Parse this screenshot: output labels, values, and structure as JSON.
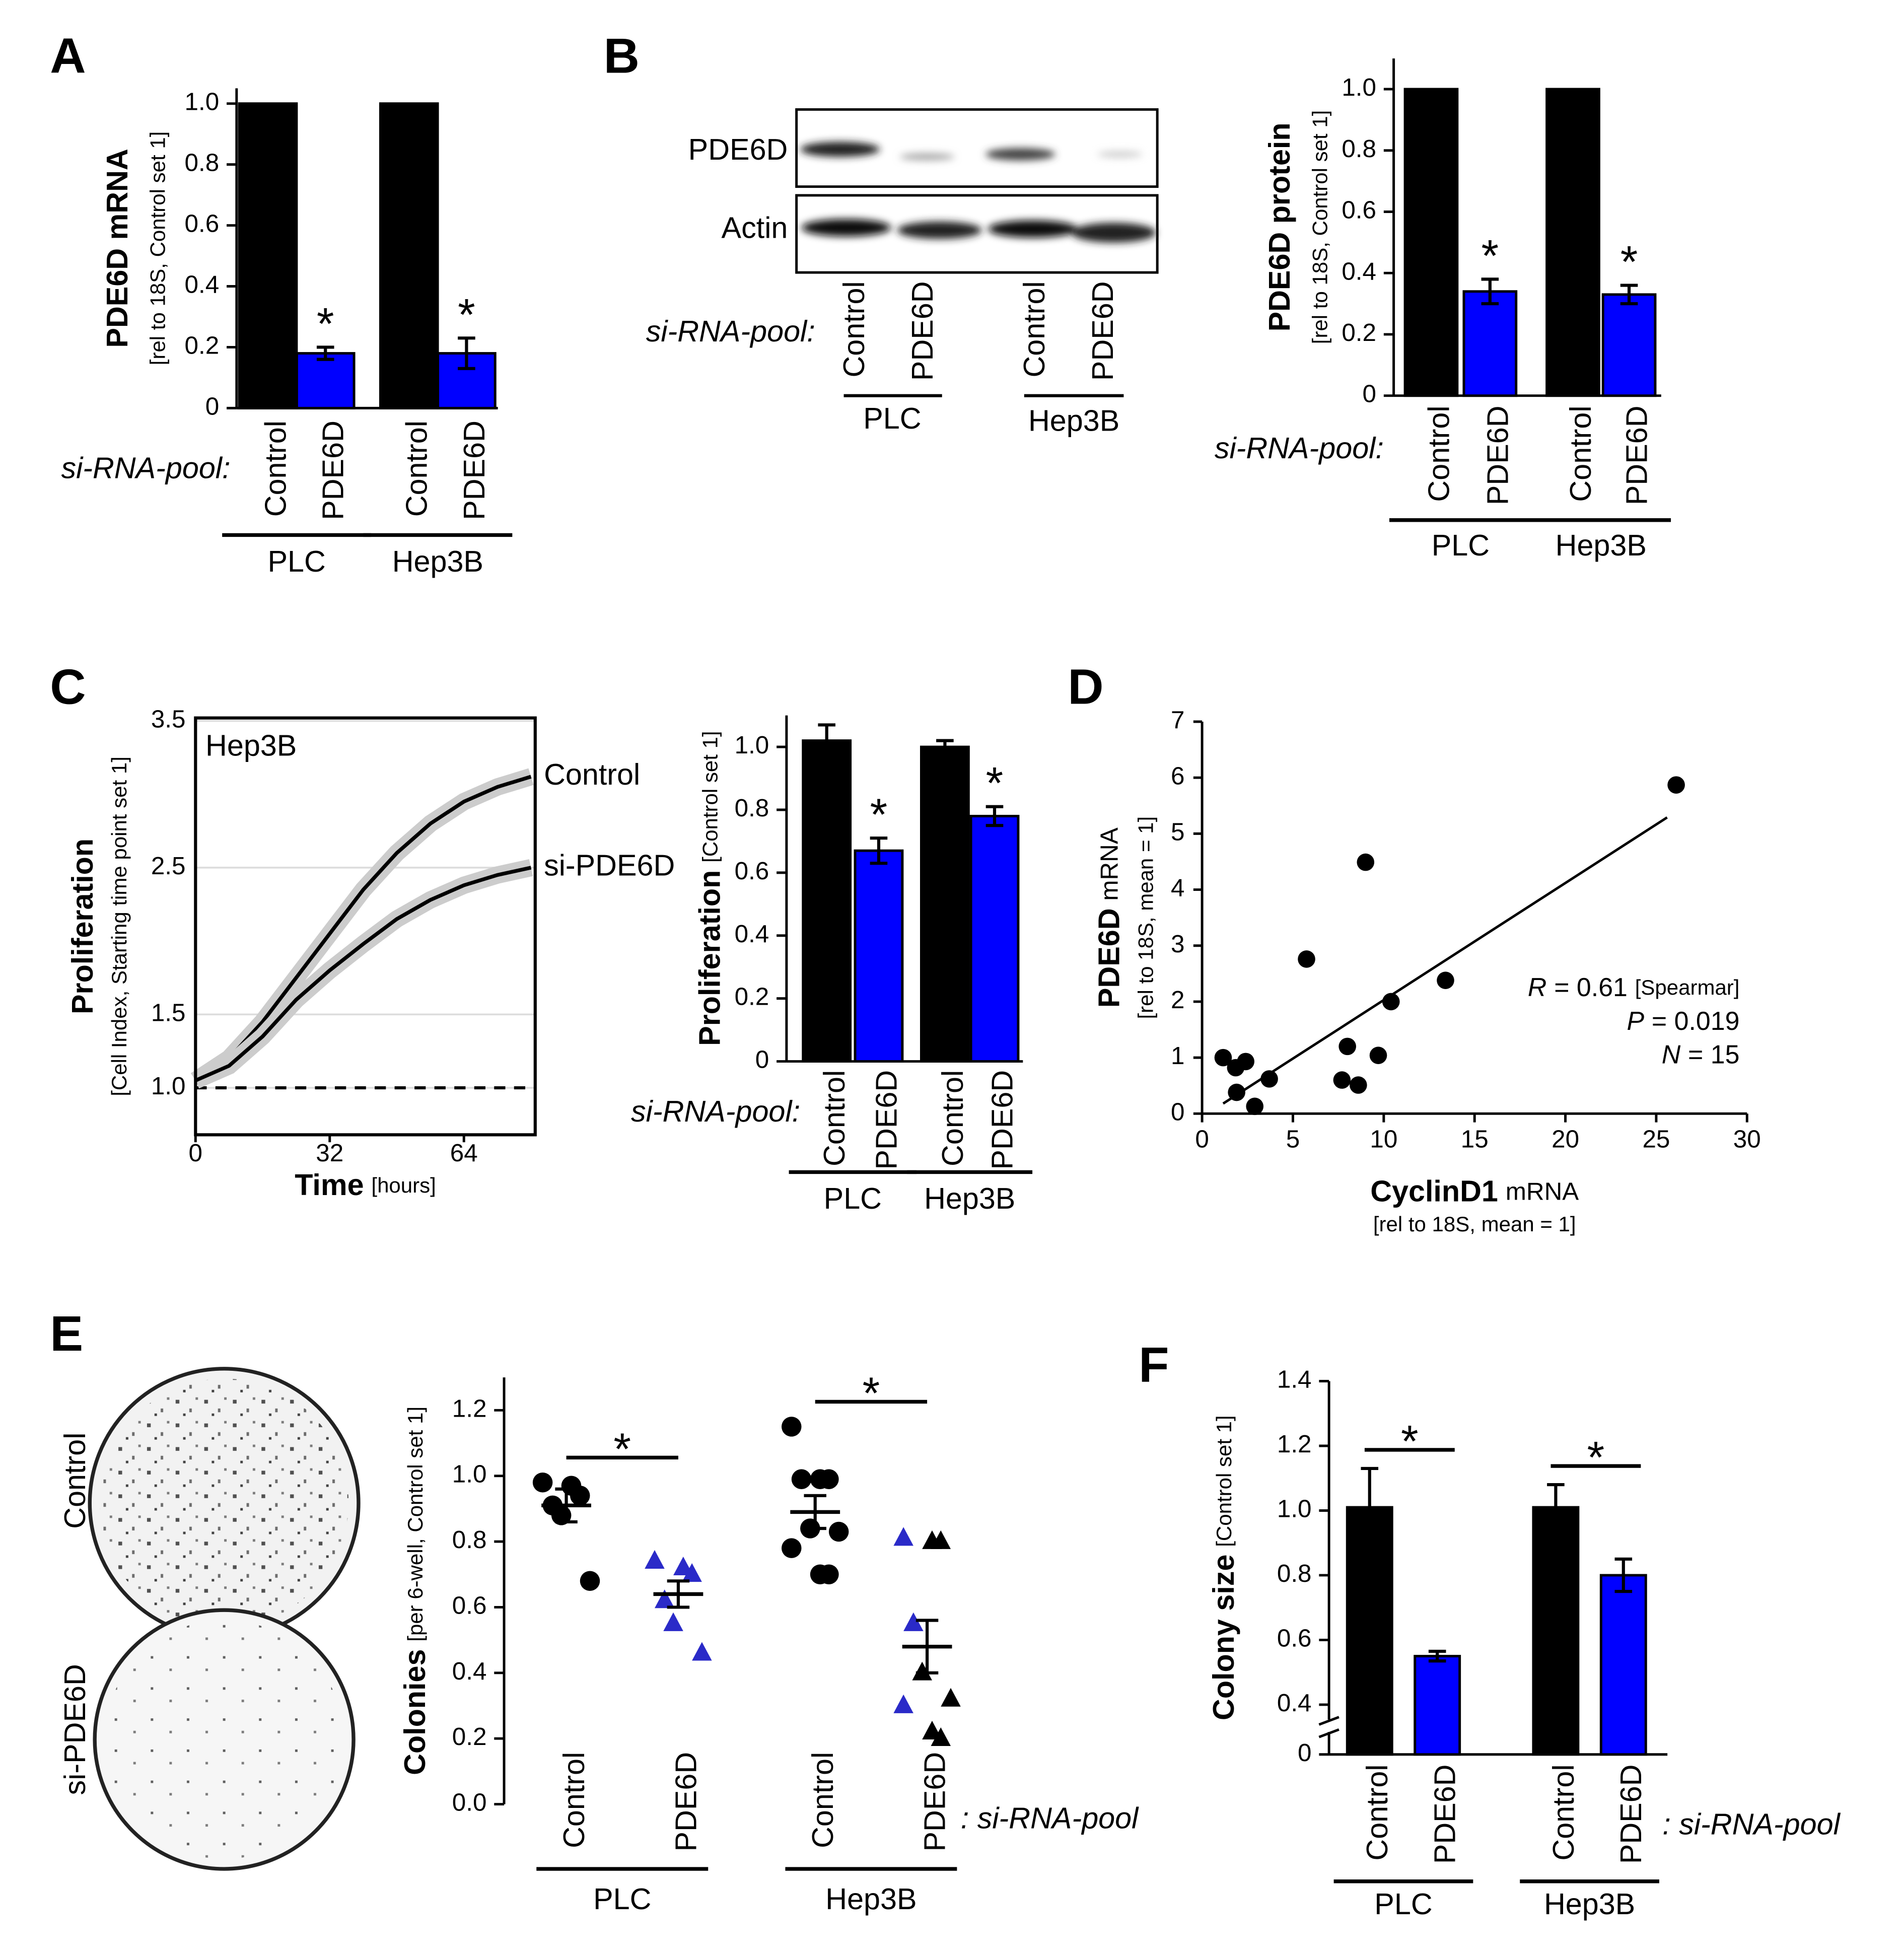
{
  "chart_data": [
    {
      "panel": "A",
      "type": "bar",
      "ylabel": "PDE6D mRNA",
      "ylabel_sub": "[rel to 18S, Control set 1]",
      "categories": [
        "Control",
        "PDE6D",
        "Control",
        "PDE6D"
      ],
      "groups": [
        "PLC",
        "Hep3B"
      ],
      "category_prefix": "si-RNA-pool:",
      "values": [
        1,
        0.18,
        1,
        0.18
      ],
      "errors": [
        null,
        0.02,
        null,
        0.05
      ],
      "annotations": [
        null,
        "*",
        null,
        "*"
      ],
      "colors": [
        "#000000",
        "#0000ff",
        "#000000",
        "#0000ff"
      ],
      "ylim": [
        0,
        1.05
      ],
      "yticks": [
        0,
        0.2,
        0.4,
        0.6,
        0.8,
        {
          "value": 1,
          "label": "1.0"
        }
      ]
    },
    {
      "panel": "B",
      "type": "bar",
      "ylabel": "PDE6D protein",
      "ylabel_sub": "[rel to 18S, Control set 1]",
      "categories": [
        "Control",
        "PDE6D",
        "Control",
        "PDE6D"
      ],
      "groups": [
        "PLC",
        "Hep3B"
      ],
      "category_prefix": "si-RNA-pool:",
      "values": [
        1,
        0.34,
        1,
        0.33
      ],
      "errors": [
        null,
        0.04,
        null,
        0.03
      ],
      "annotations": [
        null,
        "*",
        null,
        "*"
      ],
      "colors": [
        "#000000",
        "#0000ff",
        "#000000",
        "#0000ff"
      ],
      "ylim": [
        0,
        1.1
      ],
      "yticks": [
        0,
        0.2,
        0.4,
        0.6,
        0.8,
        {
          "value": 1,
          "label": "1.0"
        }
      ]
    },
    {
      "panel": "C",
      "type": "line",
      "title": "Hep3B",
      "ylabel": "Proliferation",
      "ylabel_sub": "[Cell Index, Starting time point set 1]",
      "xlabel": "Time",
      "xlabel_sub": "[hours]",
      "x": [
        0,
        8,
        16,
        24,
        32,
        40,
        48,
        56,
        64,
        72,
        80
      ],
      "series": [
        {
          "name": "Control",
          "color": "#000000",
          "values": [
            1.05,
            1.2,
            1.45,
            1.75,
            2.05,
            2.35,
            2.6,
            2.8,
            2.95,
            3.05,
            3.12
          ]
        },
        {
          "name": "si-PDE6D",
          "color": "#000000",
          "values": [
            1.05,
            1.15,
            1.35,
            1.6,
            1.8,
            1.98,
            2.15,
            2.28,
            2.38,
            2.45,
            2.5
          ]
        }
      ],
      "xlim": [
        0,
        81
      ],
      "ylim": [
        0.68,
        3.52
      ],
      "xticks": [
        0,
        32,
        64
      ],
      "yticks": [
        {
          "value": 1,
          "label": "1.0"
        },
        1.5,
        2.5,
        3.5
      ],
      "reference_line": 1,
      "grid": true
    },
    {
      "type": "bar",
      "ylabel": "Proliferation",
      "ylabel_sub": "[Control set 1]",
      "categories": [
        "Control",
        "PDE6D",
        "Control",
        "PDE6D"
      ],
      "groups": [
        "PLC",
        "Hep3B"
      ],
      "category_prefix": "si-RNA-pool:",
      "values": [
        1.02,
        0.67,
        1.0,
        0.78
      ],
      "errors": [
        0.05,
        0.04,
        0.02,
        0.03
      ],
      "annotations": [
        null,
        "*",
        null,
        "*"
      ],
      "colors": [
        "#000000",
        "#0000ff",
        "#000000",
        "#0000ff"
      ],
      "ylim": [
        0,
        1.1
      ],
      "yticks": [
        0,
        0.2,
        0.4,
        0.6,
        0.8,
        {
          "value": 1,
          "label": "1.0"
        }
      ]
    },
    {
      "panel": "D",
      "type": "scatter",
      "xlabel": "CyclinD1",
      "xlabel_unit": "mRNA",
      "xlabel_sub": "[rel to 18S, mean = 1]",
      "ylabel": "PDE6D",
      "ylabel_unit": "mRNA",
      "ylabel_sub": "[rel to 18S, mean = 1]",
      "x": [
        1.16,
        2.4,
        1.85,
        1.9,
        2.9,
        3.7,
        5.75,
        8.0,
        7.7,
        8.6,
        9.0,
        9.7,
        10.4,
        13.4,
        26.1
      ],
      "y": [
        1.0,
        0.93,
        0.82,
        0.38,
        0.13,
        0.62,
        2.76,
        1.2,
        0.6,
        0.51,
        4.49,
        1.04,
        2.0,
        2.38,
        5.87
      ],
      "trendline": {
        "x": [
          1.16,
          25.6
        ],
        "y": [
          0.18,
          5.29
        ]
      },
      "stats": [
        {
          "name": "R",
          "text": "= 0.61",
          "note": "[Spearmar]"
        },
        {
          "name": "P",
          "text": "= 0.019"
        },
        {
          "name": "N",
          "text": "= 15"
        }
      ],
      "color": "#000000",
      "xlim": [
        0,
        30
      ],
      "ylim": [
        0,
        7
      ],
      "xticks": [
        0,
        5,
        10,
        15,
        20,
        25,
        30
      ],
      "yticks": [
        0,
        1,
        2,
        3,
        4,
        5,
        6,
        7
      ]
    },
    {
      "panel": "E",
      "type": "dot",
      "ylabel": "Colonies",
      "ylabel_sub": "[per 6-well, Control set 1]",
      "categories": [
        "Control",
        "PDE6D",
        "Control",
        "PDE6D"
      ],
      "groups": [
        "PLC",
        "Hep3B"
      ],
      "category_suffix": ": si-RNA-pool",
      "values": [
        [
          0.98,
          0.97,
          0.94,
          0.91,
          0.88,
          0.68
        ],
        [
          0.74,
          0.72,
          0.7,
          0.62,
          0.55,
          0.46
        ],
        [
          1.15,
          0.99,
          0.99,
          0.99,
          0.84,
          0.83,
          0.78,
          0.7,
          0.7
        ],
        [
          0.81,
          0.8,
          0.8,
          0.55,
          0.4,
          0.32,
          0.3,
          0.22,
          0.2
        ]
      ],
      "means": [
        0.91,
        0.64,
        0.89,
        0.48
      ],
      "errors": [
        0.05,
        0.04,
        0.05,
        0.08
      ],
      "markers": [
        "circle",
        "triangle",
        "circle",
        "triangle"
      ],
      "colors": [
        "#000000",
        "#2a2ac8",
        "#000000",
        "#000000"
      ],
      "significance": [
        "*",
        "*"
      ],
      "ylim": [
        0,
        1.3
      ],
      "yticks": [
        {
          "value": 0,
          "label": "0.0"
        },
        0.2,
        0.4,
        0.6,
        0.8,
        {
          "value": 1,
          "label": "1.0"
        },
        1.2
      ]
    },
    {
      "panel": "F",
      "type": "bar",
      "ylabel": "Colony size",
      "ylabel_sub": "[Control set 1]",
      "categories": [
        "Control",
        "PDE6D",
        "Control",
        "PDE6D"
      ],
      "groups": [
        "PLC",
        "Hep3B"
      ],
      "category_suffix": ": si-RNA-pool",
      "values": [
        1.01,
        0.55,
        1.01,
        0.8
      ],
      "errors": [
        0.12,
        0.015,
        0.07,
        0.05
      ],
      "significance": [
        "*",
        "*"
      ],
      "colors": [
        "#000000",
        "#0000ff",
        "#000000",
        "#0000ff"
      ],
      "ybreak": 0.4,
      "ylim": [
        0,
        1.4
      ],
      "yticks": [
        0,
        0.4,
        0.6,
        0.8,
        {
          "value": 1,
          "label": "1.0"
        },
        1.2,
        1.4
      ]
    }
  ],
  "blot": {
    "rows": [
      "PDE6D",
      "Actin"
    ],
    "lanes": [
      "Control",
      "PDE6D",
      "Control",
      "PDE6D"
    ],
    "groups": [
      "PLC",
      "Hep3B"
    ],
    "prefix": "si-RNA-pool:"
  },
  "plates": {
    "labels": [
      "Control",
      "si-PDE6D"
    ]
  }
}
